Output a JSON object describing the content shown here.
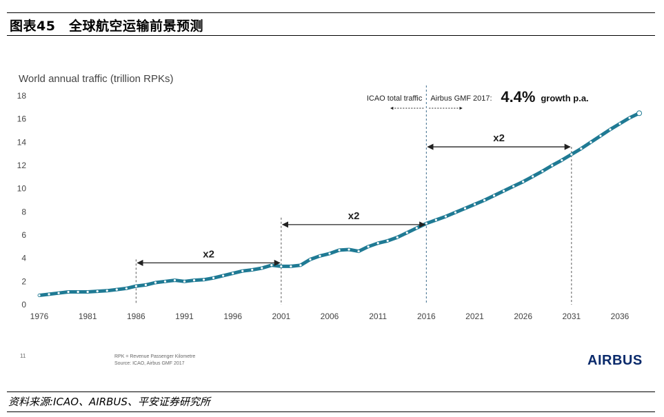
{
  "figure": {
    "title": "图表45　全球航空运输前景预测",
    "source": "资料来源:ICAO、AIRBUS、平安证券研究所"
  },
  "slide": {
    "page_number": "11",
    "note_line1": "RPK = Revenue Passenger Kilometre",
    "note_line2": "Source: ICAO, Airbus GMF 2017",
    "logo": "AIRBUS"
  },
  "chart_data": {
    "type": "line",
    "ylabel": "World annual traffic (trillion RPKs)",
    "ylim": [
      0,
      18
    ],
    "yticks": [
      0,
      2,
      4,
      6,
      8,
      10,
      12,
      14,
      16,
      18
    ],
    "xlim": [
      1976,
      2036
    ],
    "xticks": [
      1976,
      1981,
      1986,
      1991,
      1996,
      2001,
      2006,
      2011,
      2016,
      2021,
      2026,
      2031,
      2036
    ],
    "grid": false,
    "color": "#1f7a94",
    "series": [
      {
        "name": "",
        "points": [
          [
            1976,
            0.8
          ],
          [
            1977,
            0.9
          ],
          [
            1978,
            1.0
          ],
          [
            1979,
            1.1
          ],
          [
            1980,
            1.1
          ],
          [
            1981,
            1.1
          ],
          [
            1982,
            1.15
          ],
          [
            1983,
            1.2
          ],
          [
            1984,
            1.3
          ],
          [
            1985,
            1.4
          ],
          [
            1986,
            1.6
          ],
          [
            1987,
            1.7
          ],
          [
            1988,
            1.9
          ],
          [
            1989,
            2.0
          ],
          [
            1990,
            2.1
          ],
          [
            1991,
            2.0
          ],
          [
            1992,
            2.1
          ],
          [
            1993,
            2.15
          ],
          [
            1994,
            2.3
          ],
          [
            1995,
            2.5
          ],
          [
            1996,
            2.7
          ],
          [
            1997,
            2.9
          ],
          [
            1998,
            3.0
          ],
          [
            1999,
            3.15
          ],
          [
            2000,
            3.4
          ],
          [
            2001,
            3.3
          ],
          [
            2002,
            3.3
          ],
          [
            2003,
            3.4
          ],
          [
            2004,
            3.9
          ],
          [
            2005,
            4.2
          ],
          [
            2006,
            4.4
          ],
          [
            2007,
            4.7
          ],
          [
            2008,
            4.75
          ],
          [
            2009,
            4.6
          ],
          [
            2010,
            5.0
          ],
          [
            2011,
            5.3
          ],
          [
            2012,
            5.5
          ],
          [
            2013,
            5.8
          ],
          [
            2014,
            6.2
          ],
          [
            2015,
            6.6
          ],
          [
            2016,
            7.0
          ],
          [
            2017,
            7.3
          ],
          [
            2018,
            7.6
          ],
          [
            2019,
            7.95
          ],
          [
            2020,
            8.3
          ],
          [
            2021,
            8.65
          ],
          [
            2022,
            9.0
          ],
          [
            2023,
            9.4
          ],
          [
            2024,
            9.8
          ],
          [
            2025,
            10.2
          ],
          [
            2026,
            10.6
          ],
          [
            2027,
            11.05
          ],
          [
            2028,
            11.5
          ],
          [
            2029,
            12.0
          ],
          [
            2030,
            12.45
          ],
          [
            2031,
            12.95
          ],
          [
            2032,
            13.45
          ],
          [
            2033,
            14.0
          ],
          [
            2034,
            14.55
          ],
          [
            2035,
            15.1
          ],
          [
            2036,
            15.6
          ],
          [
            2037,
            16.1
          ],
          [
            2038,
            16.5
          ]
        ]
      }
    ],
    "annotations": {
      "doubling_label": "x2",
      "doublings": [
        {
          "from": 1986,
          "to": 2001,
          "y": 3.6
        },
        {
          "from": 2001,
          "to": 2016,
          "y": 6.9
        },
        {
          "from": 2016,
          "to": 2031,
          "y": 13.6
        }
      ],
      "split_year": 2016,
      "left_label": "ICAO total traffic",
      "right_label_prefix": "Airbus GMF 2017:",
      "growth_value": "4.4%",
      "growth_suffix": "growth p.a."
    }
  }
}
